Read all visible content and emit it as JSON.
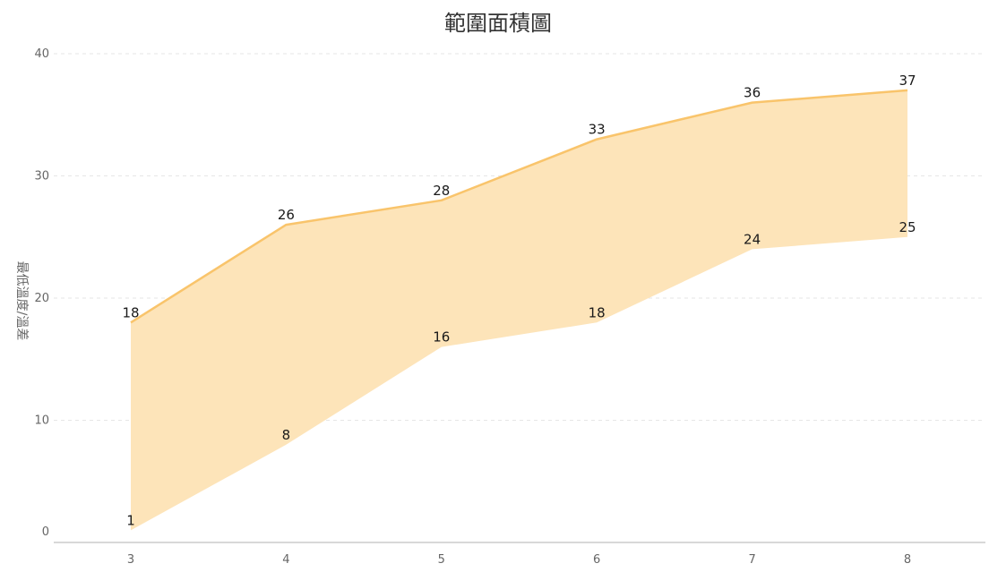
{
  "chart_data": {
    "type": "area",
    "subtype": "range",
    "title": "範圍面積圖",
    "xlabel": "",
    "ylabel": "最低溫度/溫差",
    "x": [
      3,
      4,
      5,
      6,
      7,
      8
    ],
    "x_tick_labels": [
      "3",
      "4",
      "5",
      "6",
      "7",
      "8"
    ],
    "series": [
      {
        "low": [
          1,
          8,
          16,
          18,
          24,
          25
        ],
        "high": [
          18,
          26,
          28,
          33,
          36,
          37
        ]
      }
    ],
    "ylim": [
      0,
      40
    ],
    "y_ticks": [
      0,
      10,
      20,
      30,
      40
    ],
    "y_tick_labels": [
      "0",
      "10",
      "20",
      "30",
      "40"
    ],
    "grid": true,
    "legend": "none",
    "colors": {
      "fill": "#fde4b9",
      "line": "#f9c46b",
      "title": "#333333",
      "tick": "#666666",
      "label": "#1a1a1a",
      "grid": "#e6e6e6",
      "axis": "#cccccc"
    }
  }
}
